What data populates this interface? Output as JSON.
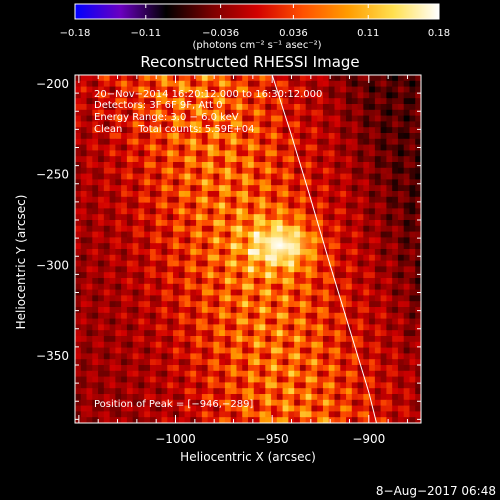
{
  "chart_data": {
    "type": "heatmap",
    "title": "Reconstructed RHESSI Image",
    "xlabel": "Heliocentric X (arcsec)",
    "ylabel": "Heliocentric Y (arcsec)",
    "xlim": [
      -1052,
      -873
    ],
    "ylim": [
      -387,
      -195
    ],
    "x_ticks": [
      {
        "value": -1000,
        "label": "−1000"
      },
      {
        "value": -950,
        "label": "−950"
      },
      {
        "value": -900,
        "label": "−900"
      }
    ],
    "y_ticks": [
      {
        "value": -200,
        "label": "−200"
      },
      {
        "value": -250,
        "label": "−250"
      },
      {
        "value": -300,
        "label": "−300"
      },
      {
        "value": -350,
        "label": "−350"
      }
    ],
    "colorbar": {
      "range": [
        -0.18,
        0.18
      ],
      "ticks": [
        {
          "value": -0.18,
          "label": "−0.18"
        },
        {
          "value": -0.11,
          "label": "−0.11"
        },
        {
          "value": -0.036,
          "label": "−0.036"
        },
        {
          "value": 0.036,
          "label": "0.036"
        },
        {
          "value": 0.11,
          "label": "0.11"
        },
        {
          "value": 0.18,
          "label": "0.18"
        }
      ],
      "unit_label": "(photons cm⁻² s⁻¹ asec⁻²)"
    },
    "annotations": [
      "20−Nov−2014 16:20:12.000 to 16:30:12.000",
      "Detectors: 3F 6F 9F, Att 0",
      "Energy Range: 3.0 − 6.0 keV",
      "Clean     Total counts: 5.59E+04"
    ],
    "peak_label": "Position of Peak = [−946,−289]",
    "peak": {
      "x": -946,
      "y": -289
    },
    "limb_curve": [
      {
        "x": -950,
        "y": -195
      },
      {
        "x": -941,
        "y": -225
      },
      {
        "x": -931,
        "y": -260
      },
      {
        "x": -920,
        "y": -300
      },
      {
        "x": -910,
        "y": -335
      },
      {
        "x": -900,
        "y": -370
      },
      {
        "x": -896,
        "y": -387
      }
    ],
    "peak_value": 0.18,
    "colormap": [
      "#0000ff",
      "#6a00c0",
      "#000000",
      "#7a0000",
      "#d20000",
      "#ff5000",
      "#ff9c00",
      "#ffe050",
      "#ffffff"
    ]
  },
  "footer": {
    "timestamp": "8−Aug−2017 06:48"
  }
}
